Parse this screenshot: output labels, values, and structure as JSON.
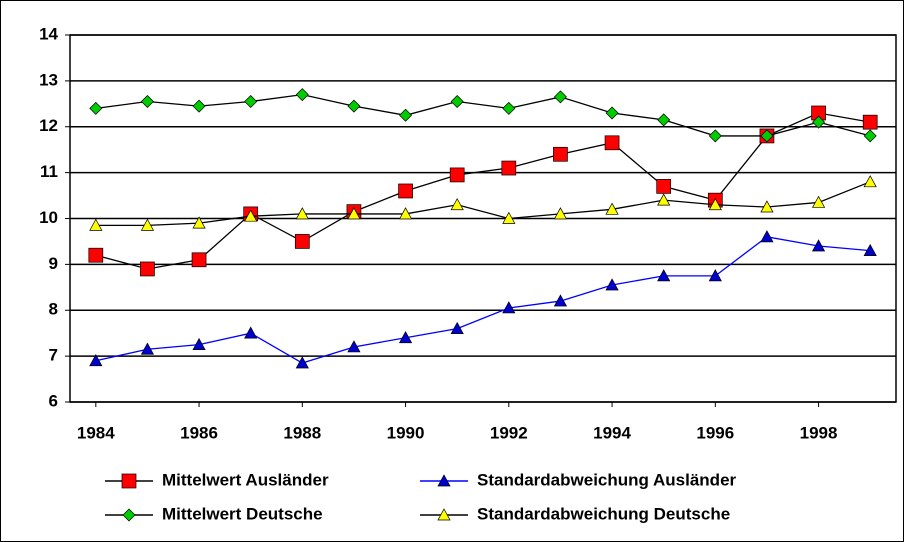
{
  "chart_data": {
    "type": "line",
    "x": [
      1984,
      1985,
      1986,
      1987,
      1988,
      1989,
      1990,
      1991,
      1992,
      1993,
      1994,
      1995,
      1996,
      1997,
      1998,
      1999
    ],
    "xlim": [
      1983.5,
      1999.5
    ],
    "xticks": [
      1984,
      1986,
      1988,
      1990,
      1992,
      1994,
      1996,
      1998
    ],
    "ylim": [
      6,
      14
    ],
    "yticks": [
      6,
      7,
      8,
      9,
      10,
      11,
      12,
      13,
      14
    ],
    "grid": true,
    "legend": "bottom",
    "series": [
      {
        "name": "Mittelwert Ausländer",
        "color": "#ff0000",
        "line_color": "#000000",
        "marker": "square",
        "values": [
          9.2,
          8.9,
          9.1,
          10.1,
          9.5,
          10.15,
          10.6,
          10.95,
          11.1,
          11.4,
          11.65,
          10.7,
          10.4,
          11.8,
          12.3,
          12.1
        ]
      },
      {
        "name": "Standardabweichung Ausländer",
        "color": "#0000cc",
        "line_color": "#0000ff",
        "marker": "triangle",
        "values": [
          6.9,
          7.15,
          7.25,
          7.5,
          6.85,
          7.2,
          7.4,
          7.6,
          8.05,
          8.2,
          8.55,
          8.75,
          8.75,
          9.6,
          9.4,
          9.3
        ]
      },
      {
        "name": "Mittelwert Deutsche",
        "color": "#00cc00",
        "line_color": "#000000",
        "marker": "diamond",
        "values": [
          12.4,
          12.55,
          12.45,
          12.55,
          12.7,
          12.45,
          12.25,
          12.55,
          12.4,
          12.65,
          12.3,
          12.15,
          11.8,
          11.8,
          12.1,
          11.8
        ]
      },
      {
        "name": "Standardabweichung Deutsche",
        "color": "#ffff00",
        "line_color": "#000000",
        "marker": "triangle",
        "values": [
          9.85,
          9.85,
          9.9,
          10.05,
          10.1,
          10.1,
          10.1,
          10.3,
          10.0,
          10.1,
          10.2,
          10.4,
          10.3,
          10.25,
          10.35,
          10.8
        ]
      }
    ]
  }
}
